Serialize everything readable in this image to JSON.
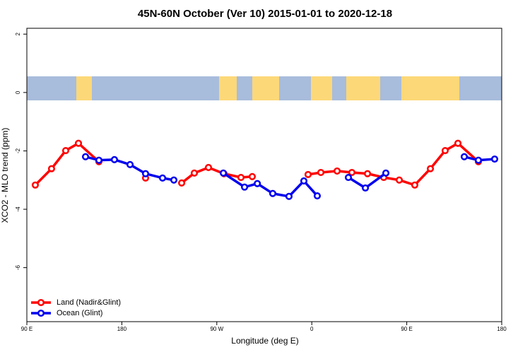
{
  "chart_data": {
    "type": "line",
    "title": "45N-60N October (Ver 10)   2015-01-01 to 2020-12-18",
    "x_label": "Longitude (deg E)",
    "y_label": "XCO2 - MLO trend (ppm)",
    "xlim": [
      90,
      540
    ],
    "ylim": [
      -7.85,
      2.2
    ],
    "xticks": [
      {
        "value": 90,
        "label": "90 E"
      },
      {
        "value": 180,
        "label": "180"
      },
      {
        "value": 270,
        "label": "90 W"
      },
      {
        "value": 360,
        "label": "0"
      },
      {
        "value": 450,
        "label": "90 E"
      },
      {
        "value": 540,
        "label": "180"
      }
    ],
    "yticks": [
      2,
      0,
      -2,
      -4,
      -6
    ],
    "legend": "bottom-left",
    "series": [
      {
        "name": "Land (Nadir&Glint)",
        "color": "#ff0000",
        "x": [
          98.0,
          113.4,
          126.8,
          138.9,
          158.3,
          null,
          202.5,
          null,
          236.7,
          248.7,
          262.1,
          276.8,
          292.9,
          303.6,
          null,
          356.5,
          368.6,
          384.0,
          398.0,
          412.8,
          428.2,
          442.9,
          457.6,
          472.4,
          486.4,
          498.5,
          517.9
        ],
        "values": [
          -3.17,
          -2.61,
          -1.99,
          -1.74,
          -2.37,
          null,
          -2.93,
          null,
          -3.1,
          -2.76,
          -2.57,
          -2.78,
          -2.91,
          -2.88,
          null,
          -2.81,
          -2.74,
          -2.69,
          -2.74,
          -2.78,
          -2.91,
          -3.0,
          -3.17,
          -2.61,
          -1.99,
          -1.74,
          -2.37
        ]
      },
      {
        "name": "Ocean (Glint)",
        "color": "#0000ee",
        "x": [
          145.6,
          158.3,
          173.0,
          187.8,
          202.5,
          218.6,
          229.3,
          null,
          276.2,
          296.3,
          308.4,
          323.0,
          338.4,
          352.5,
          365.2,
          null,
          394.7,
          410.8,
          430.2,
          null,
          504.5,
          517.9,
          533.3
        ],
        "values": [
          -2.2,
          -2.32,
          -2.3,
          -2.47,
          -2.78,
          -2.93,
          -3.0,
          null,
          -2.76,
          -3.24,
          -3.12,
          -3.46,
          -3.56,
          -3.03,
          -3.54,
          null,
          -2.91,
          -3.27,
          -2.76,
          null,
          -2.2,
          -2.32,
          -2.28
        ]
      }
    ]
  }
}
